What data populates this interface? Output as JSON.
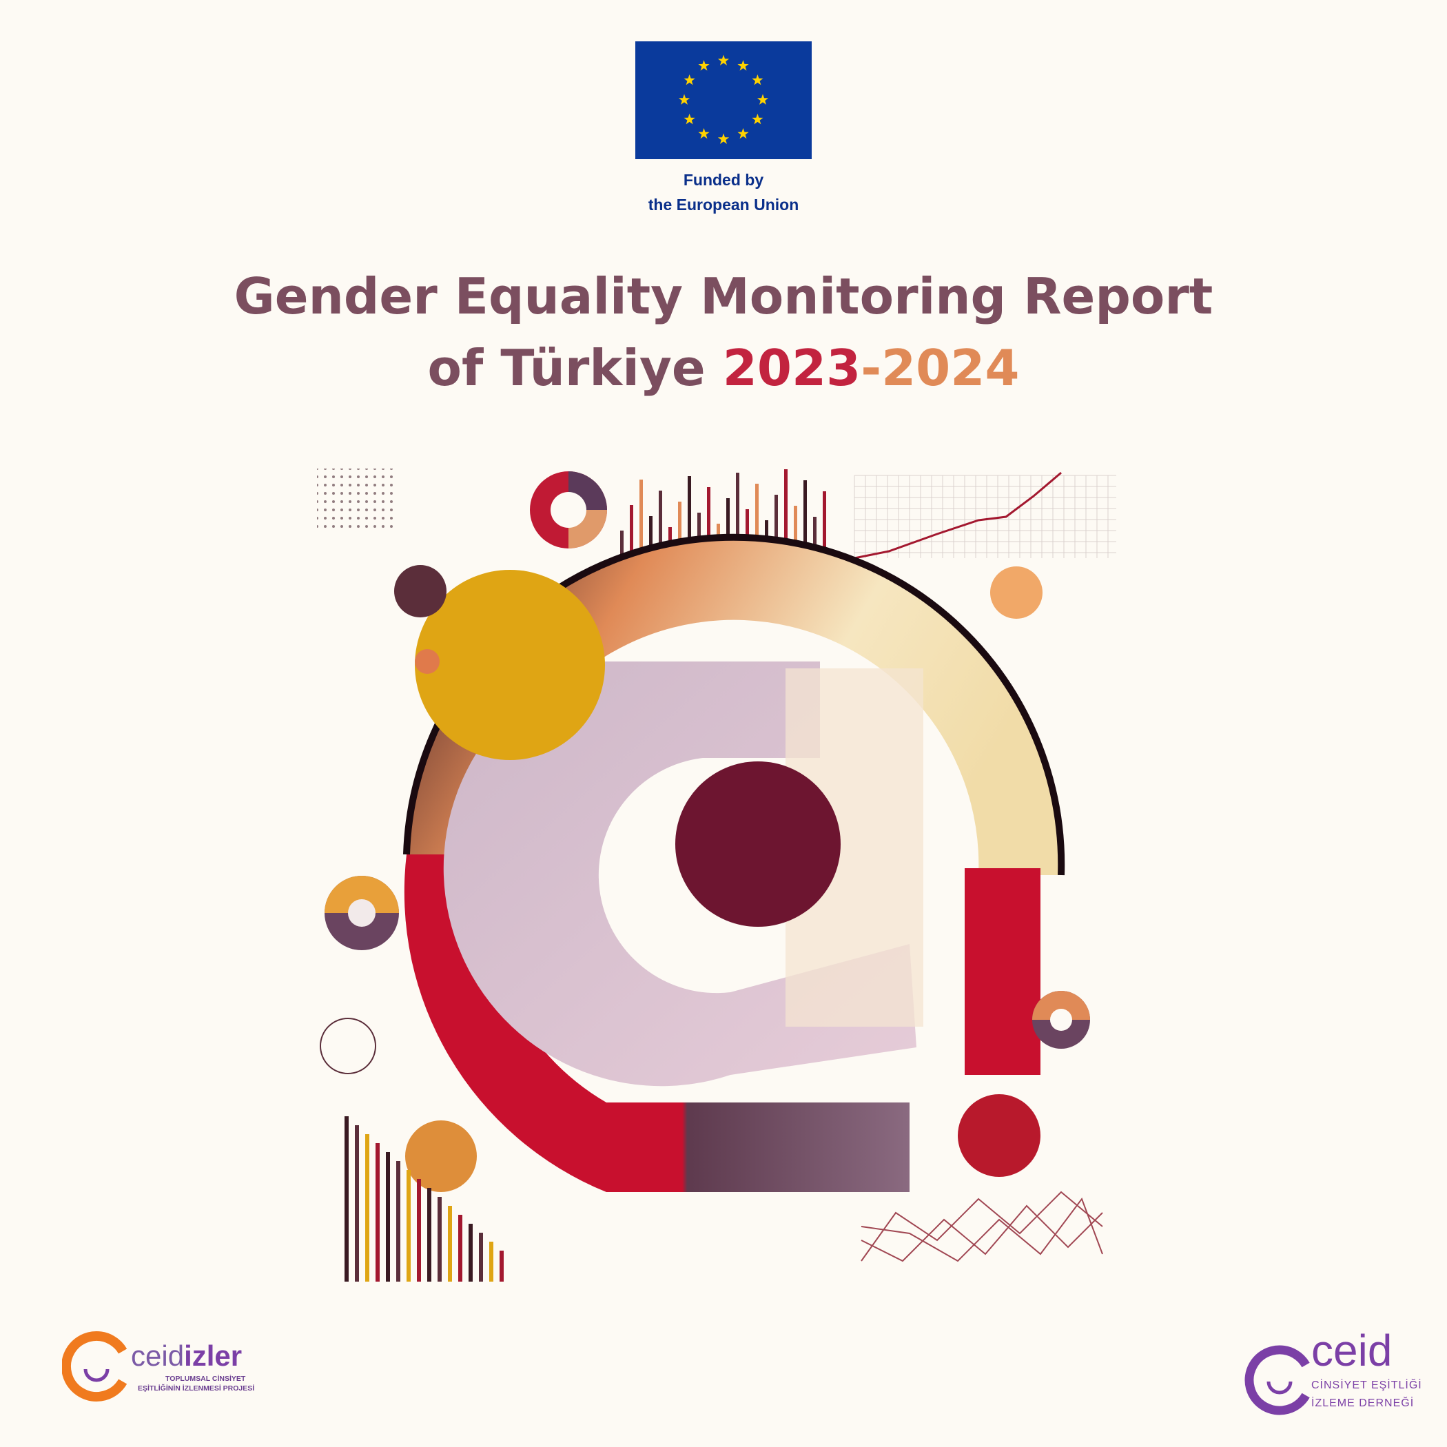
{
  "eu": {
    "caption_line1": "Funded by",
    "caption_line2": "the European Union",
    "flag_blue": "#0a3a9c",
    "star_yellow": "#ffd200"
  },
  "title": {
    "line1": "Gender Equality Monitoring Report",
    "line2_prefix": "of Türkiye ",
    "year_start": "2023",
    "separator": "-",
    "year_end": "2024",
    "color_main": "#7b4e5f",
    "color_year_start": "#c2233f",
    "color_year_end": "#e08a57"
  },
  "logos": {
    "left": {
      "word_light": "ceid",
      "word_bold": "izler",
      "sub_line1": "TOPLUMSAL CİNSİYET",
      "sub_line2": "EŞİTLİĞİNİN İZLENMESİ PROJESİ"
    },
    "right": {
      "word": "ceid",
      "sub_line1": "CİNSİYET EŞİTLİĞİ",
      "sub_line2": "İZLEME DERNEĞİ"
    }
  }
}
